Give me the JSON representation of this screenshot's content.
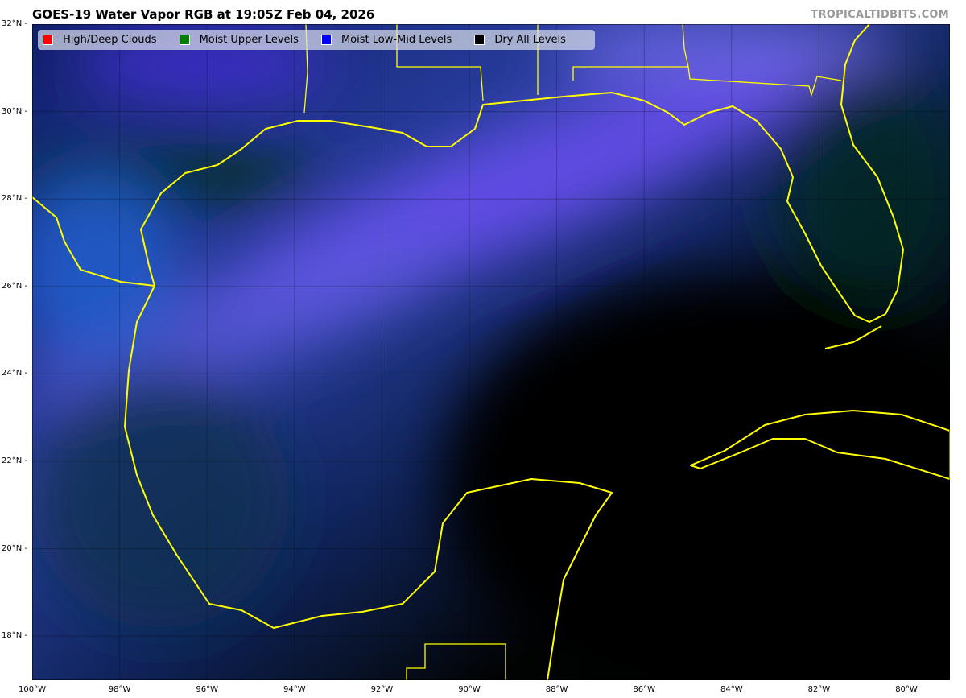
{
  "title": "GOES-19 Water Vapor RGB at 19:05Z Feb 04, 2026",
  "credit": "TROPICALTIDBITS.COM",
  "legend": [
    {
      "label": "High/Deep Clouds",
      "color": "#ff0000"
    },
    {
      "label": "Moist Upper Levels",
      "color": "#008000"
    },
    {
      "label": "Moist Low-Mid Levels",
      "color": "#0000ff"
    },
    {
      "label": "Dry All Levels",
      "color": "#000000"
    }
  ],
  "axes": {
    "lat_labels": [
      "32°N",
      "30°N",
      "28°N",
      "26°N",
      "24°N",
      "22°N",
      "20°N",
      "18°N"
    ],
    "lon_labels": [
      "100°W",
      "98°W",
      "96°W",
      "94°W",
      "92°W",
      "90°W",
      "88°W",
      "86°W",
      "84°W",
      "82°W",
      "80°W"
    ]
  },
  "coastline_color": "#ffff00"
}
